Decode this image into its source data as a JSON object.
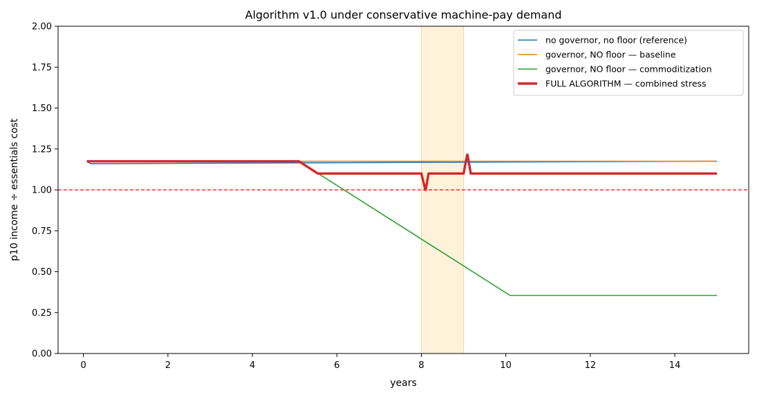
{
  "chart_data": {
    "type": "line",
    "title": "Algorithm v1.0 under conservative machine-pay demand",
    "xlabel": "years",
    "ylabel": "p10 income ÷ essentials cost",
    "xlim": [
      -0.6,
      15.75
    ],
    "ylim": [
      0,
      2.0
    ],
    "xticks": [
      0,
      2,
      4,
      6,
      8,
      10,
      12,
      14
    ],
    "yticks": [
      0.0,
      0.25,
      0.5,
      0.75,
      1.0,
      1.25,
      1.5,
      1.75,
      2.0
    ],
    "xtick_labels": [
      "0",
      "2",
      "4",
      "6",
      "8",
      "10",
      "12",
      "14"
    ],
    "ytick_labels": [
      "0.00",
      "0.25",
      "0.50",
      "0.75",
      "1.00",
      "1.25",
      "1.50",
      "1.75",
      "2.00"
    ],
    "grid": false,
    "legend_position": "top-right",
    "reference_line": {
      "y": 1.0,
      "color": "#ff0000",
      "style": "dashed"
    },
    "shaded_region": {
      "x0": 8.0,
      "x1": 9.0,
      "color": "#fdebc8"
    },
    "series": [
      {
        "name": "no governor, no floor (reference)",
        "color": "#1f77b4",
        "width": 1.6,
        "x": [
          0.08,
          0.17,
          15.0
        ],
        "y": [
          1.175,
          1.16,
          1.175
        ]
      },
      {
        "name": "governor, NO floor — baseline",
        "color": "#ff7f0e",
        "width": 1.6,
        "x": [
          0.08,
          15.0
        ],
        "y": [
          1.175,
          1.175
        ]
      },
      {
        "name": "governor, NO floor — commoditization",
        "color": "#2ca02c",
        "width": 1.6,
        "x": [
          0.08,
          5.1,
          10.1,
          15.0
        ],
        "y": [
          1.175,
          1.175,
          0.355,
          0.355
        ]
      },
      {
        "name": "FULL ALGORITHM — combined stress",
        "color": "#d62728",
        "width": 3.4,
        "x": [
          0.08,
          5.1,
          5.55,
          8.0,
          8.1,
          8.17,
          9.0,
          9.09,
          9.17,
          15.0
        ],
        "y": [
          1.175,
          1.175,
          1.1,
          1.1,
          0.995,
          1.1,
          1.1,
          1.22,
          1.1,
          1.1
        ]
      }
    ]
  }
}
